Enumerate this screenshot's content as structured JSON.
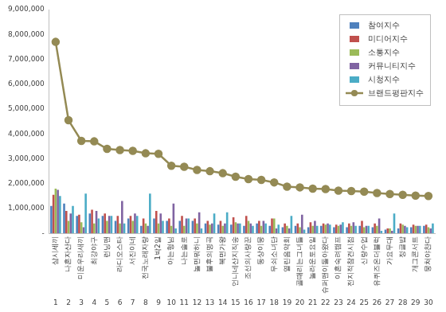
{
  "chart_data": {
    "type": "bar",
    "categories": [
      "삼시세끼",
      "나혼자산다",
      "미운우리새끼",
      "최강야구",
      "런닝맨",
      "라디오스타",
      "서진이네",
      "전국노래자랑",
      "1박2일",
      "아는형님",
      "나는솔로",
      "놀면뭐하니",
      "불후의명곡",
      "복면가왕",
      "언니네산지직송",
      "조선의사랑꾼",
      "동상이몽",
      "무쇠소녀단",
      "열린음악회",
      "골때리는그녀들",
      "놀라운토요일",
      "슈퍼맨이돌아왔다",
      "이혼숙려캠프",
      "전지적참견시점",
      "신랑수업",
      "유퀴즈온더블럭",
      "가요무대",
      "정글밥",
      "개그콘서트",
      "뭉쳐야찬다"
    ],
    "ranks": [
      1,
      2,
      3,
      4,
      5,
      6,
      7,
      8,
      9,
      10,
      11,
      12,
      13,
      14,
      15,
      16,
      17,
      18,
      19,
      20,
      21,
      22,
      23,
      24,
      25,
      26,
      27,
      28,
      29,
      30
    ],
    "series": [
      {
        "name": "참여지수",
        "color": "#4f81bd",
        "type": "bar",
        "values": [
          1100000,
          1200000,
          700000,
          800000,
          700000,
          500000,
          600000,
          300000,
          600000,
          500000,
          500000,
          500000,
          400000,
          350000,
          350000,
          300000,
          400000,
          300000,
          250000,
          300000,
          250000,
          300000,
          250000,
          250000,
          300000,
          250000,
          150000,
          200000,
          250000,
          300000
        ]
      },
      {
        "name": "미디어지수",
        "color": "#c0504d",
        "type": "bar",
        "values": [
          1550000,
          900000,
          750000,
          950000,
          800000,
          700000,
          700000,
          600000,
          900000,
          600000,
          700000,
          600000,
          500000,
          500000,
          650000,
          700000,
          500000,
          600000,
          400000,
          400000,
          450000,
          400000,
          350000,
          400000,
          500000,
          400000,
          200000,
          400000,
          350000,
          350000
        ]
      },
      {
        "name": "소통지수",
        "color": "#9bbb59",
        "type": "bar",
        "values": [
          1800000,
          500000,
          450000,
          400000,
          500000,
          400000,
          500000,
          400000,
          400000,
          300000,
          300000,
          400000,
          350000,
          300000,
          450000,
          500000,
          300000,
          600000,
          300000,
          250000,
          300000,
          350000,
          300000,
          300000,
          250000,
          300000,
          200000,
          350000,
          300000,
          250000
        ]
      },
      {
        "name": "커뮤니티지수",
        "color": "#8064a2",
        "type": "bar",
        "values": [
          1750000,
          800000,
          250000,
          900000,
          700000,
          1300000,
          800000,
          300000,
          800000,
          1200000,
          600000,
          850000,
          400000,
          400000,
          400000,
          400000,
          500000,
          200000,
          200000,
          750000,
          500000,
          400000,
          350000,
          450000,
          300000,
          600000,
          100000,
          300000,
          300000,
          200000
        ]
      },
      {
        "name": "시청지수",
        "color": "#4bacc6",
        "type": "bar",
        "values": [
          1500000,
          1100000,
          1600000,
          600000,
          700000,
          400000,
          700000,
          1600000,
          500000,
          200000,
          600000,
          200000,
          800000,
          850000,
          400000,
          300000,
          400000,
          350000,
          700000,
          150000,
          300000,
          350000,
          450000,
          300000,
          300000,
          100000,
          800000,
          250000,
          300000,
          400000
        ]
      },
      {
        "name": "브랜드평판지수",
        "color": "#948a54",
        "type": "line",
        "marker": "circle",
        "values": [
          7700000,
          4550000,
          3720000,
          3700000,
          3400000,
          3350000,
          3320000,
          3220000,
          3200000,
          2720000,
          2680000,
          2550000,
          2500000,
          2420000,
          2280000,
          2180000,
          2150000,
          2050000,
          1880000,
          1850000,
          1800000,
          1780000,
          1720000,
          1700000,
          1680000,
          1620000,
          1580000,
          1550000,
          1520000,
          1500000
        ]
      }
    ],
    "ylim": [
      0,
      9000000
    ],
    "yticks": [
      {
        "value": 0,
        "label": "-"
      },
      {
        "value": 1000000,
        "label": "1,000,000"
      },
      {
        "value": 2000000,
        "label": "2,000,000"
      },
      {
        "value": 3000000,
        "label": "3,000,000"
      },
      {
        "value": 4000000,
        "label": "4,000,000"
      },
      {
        "value": 5000000,
        "label": "5,000,000"
      },
      {
        "value": 6000000,
        "label": "6,000,000"
      },
      {
        "value": 7000000,
        "label": "7,000,000"
      },
      {
        "value": 8000000,
        "label": "8,000,000"
      },
      {
        "value": 9000000,
        "label": "9,000,000"
      }
    ],
    "grid": false,
    "legend": "upper right"
  }
}
